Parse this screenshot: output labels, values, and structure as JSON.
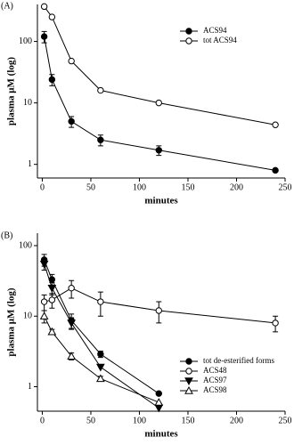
{
  "chart_data": [
    {
      "type": "line",
      "panel": "(A)",
      "x_label": "minutes",
      "y_label": "plasma μM (log)",
      "x": [
        2,
        10,
        30,
        60,
        120,
        240
      ],
      "xlim": [
        -5,
        250
      ],
      "xticks": [
        0,
        50,
        100,
        150,
        200,
        250
      ],
      "ylim": [
        0.6,
        400
      ],
      "yticks": [
        1,
        10,
        100
      ],
      "log_y": true,
      "legend": "upper right",
      "series": [
        {
          "name": "ACS94",
          "color": "#000000",
          "marker": "circle-filled",
          "values": [
            120,
            24,
            5,
            2.5,
            1.7,
            0.8
          ],
          "errors": [
            25,
            5,
            1,
            0.5,
            0.3,
            null
          ]
        },
        {
          "name": "tot ACS94",
          "color": "#000000",
          "marker": "circle-open",
          "values": [
            370,
            250,
            48,
            16,
            10,
            4.4
          ]
        }
      ]
    },
    {
      "type": "line",
      "panel": "(B)",
      "x_label": "minutes",
      "y_label": "plasma μM (log)",
      "x": [
        2,
        10,
        30,
        60,
        120,
        240
      ],
      "xlim": [
        -5,
        250
      ],
      "xticks": [
        0,
        50,
        100,
        150,
        200,
        250
      ],
      "ylim": [
        0.45,
        150
      ],
      "yticks": [
        1,
        10,
        100
      ],
      "log_y": true,
      "legend": "lower right",
      "series": [
        {
          "name": "tot de-esterified forms",
          "color": "#000000",
          "marker": "circle-filled",
          "values": [
            63,
            33,
            8.7,
            2.9,
            0.8,
            null
          ],
          "errors": [
            12,
            6,
            2,
            0.3,
            null,
            null
          ]
        },
        {
          "name": "ACS48",
          "color": "#000000",
          "marker": "circle-open",
          "values": [
            16,
            17,
            25,
            16,
            12,
            8
          ],
          "errors": [
            4,
            4,
            7,
            6,
            4,
            2
          ]
        },
        {
          "name": "ACS97",
          "color": "#000000",
          "marker": "triangle-down-filled",
          "values": [
            55,
            25,
            8,
            1.9,
            0.5,
            null
          ],
          "errors": [
            10,
            5,
            1.5,
            null,
            null,
            null
          ]
        },
        {
          "name": "ACS98",
          "color": "#000000",
          "marker": "triangle-up-open",
          "values": [
            10,
            6,
            2.7,
            1.3,
            0.6,
            null
          ],
          "errors": [
            2,
            0.5,
            0.3,
            0.1,
            null,
            null
          ]
        }
      ]
    }
  ]
}
